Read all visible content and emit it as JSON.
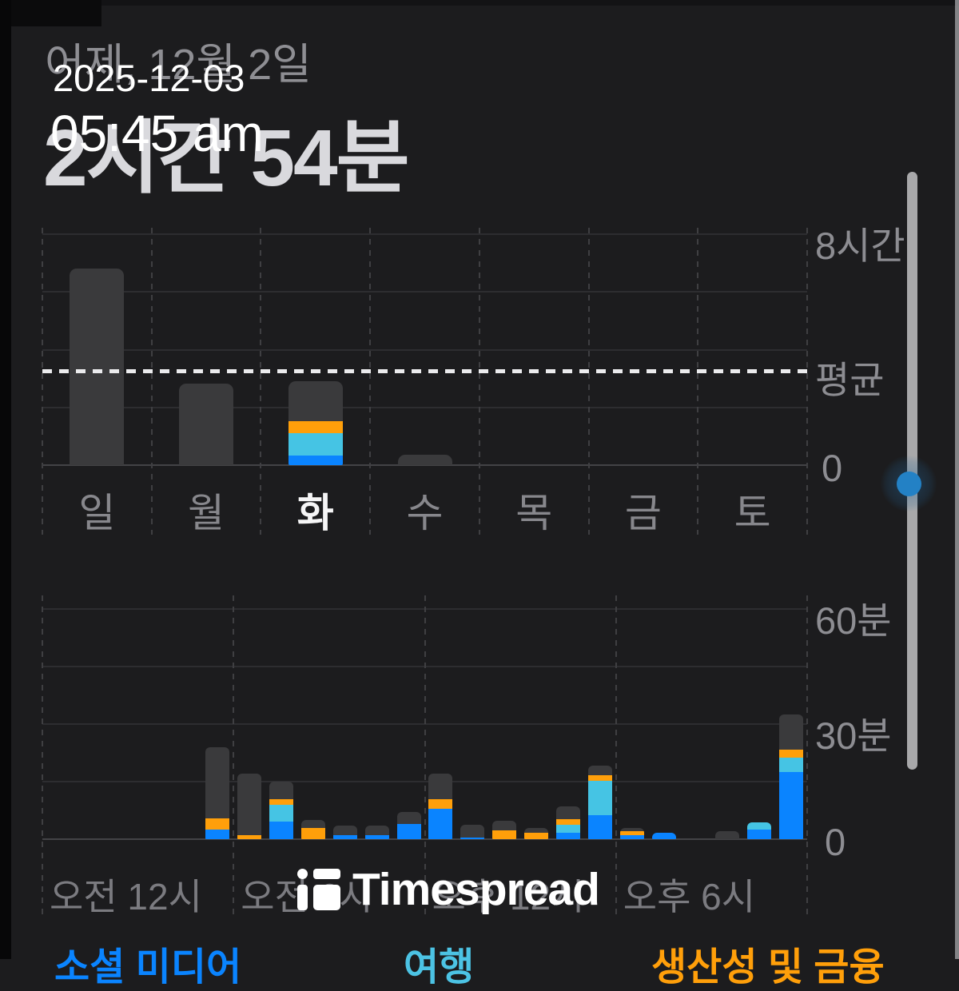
{
  "overlay": {
    "date_stamp": "2025-12-03",
    "time_stamp": "05:45 am",
    "watermark_text": "Timespread"
  },
  "header": {
    "date_label": "어제, 12월 2일",
    "total_label": "2시간 54분"
  },
  "legend": [
    {
      "label": "소셜 미디어",
      "color": "#0a84ff"
    },
    {
      "label": "여행",
      "color": "#4cc3e4"
    },
    {
      "label": "생산성 및 금융",
      "color": "#ff9f0a"
    }
  ],
  "colors": {
    "background": "#1c1c1e",
    "bar_other": "#3a3a3c",
    "bar_social": "#0a84ff",
    "bar_travel": "#45c4e4",
    "bar_productivity": "#ff9f0a",
    "average_line": "#ebebed",
    "scroll_dot": "#2381c5"
  },
  "chart_data": [
    {
      "type": "bar",
      "stacked": true,
      "unit": "hours",
      "categories": [
        "일",
        "월",
        "화",
        "수",
        "목",
        "금",
        "토"
      ],
      "selected_index": 2,
      "ylim": [
        0,
        8
      ],
      "grid_step": 2,
      "yticks": [
        {
          "value": 8,
          "label": "8시간"
        },
        {
          "value": 0,
          "label": "0"
        }
      ],
      "average": {
        "value": 3.27,
        "label": "평균"
      },
      "series": [
        {
          "name": "소셜 미디어",
          "color": "#0a84ff",
          "values": [
            0,
            0,
            0.33,
            0,
            0,
            0,
            0
          ]
        },
        {
          "name": "여행",
          "color": "#45c4e4",
          "values": [
            0,
            0,
            0.78,
            0,
            0,
            0,
            0
          ]
        },
        {
          "name": "생산성 및 금융",
          "color": "#ff9f0a",
          "values": [
            0,
            0,
            0.41,
            0,
            0,
            0,
            0
          ]
        },
        {
          "name": "other",
          "color": "#3a3a3c",
          "values": [
            6.8,
            2.82,
            1.38,
            0.37,
            0,
            0,
            0
          ]
        }
      ]
    },
    {
      "type": "bar",
      "stacked": true,
      "unit": "minutes",
      "x": "hour-of-day 0-23",
      "ylim": [
        0,
        60
      ],
      "grid_step": 15,
      "yticks": [
        {
          "value": 60,
          "label": "60분"
        },
        {
          "value": 30,
          "label": "30분"
        },
        {
          "value": 0,
          "label": "0"
        }
      ],
      "xticks": [
        {
          "hour": 0,
          "label": "오전 12시"
        },
        {
          "hour": 6,
          "label": "오전 6시"
        },
        {
          "hour": 12,
          "label": "오후 12시"
        },
        {
          "hour": 18,
          "label": "오후 6시"
        }
      ],
      "series": [
        {
          "name": "소셜 미디어",
          "color": "#0a84ff",
          "values": [
            0,
            0,
            0,
            0,
            0,
            2.5,
            0,
            4.5,
            0,
            1,
            1,
            4,
            8,
            0.5,
            0,
            0,
            1.7,
            6.3,
            1,
            1.7,
            0,
            0,
            2.4,
            17.4
          ]
        },
        {
          "name": "여행",
          "color": "#45c4e4",
          "values": [
            0,
            0,
            0,
            0,
            0,
            0,
            0,
            4.5,
            0,
            0,
            0,
            0,
            0,
            0,
            0,
            0,
            2.1,
            9,
            0,
            0,
            0,
            0,
            2,
            3.8
          ]
        },
        {
          "name": "생산성 및 금융",
          "color": "#ff9f0a",
          "values": [
            0,
            0,
            0,
            0,
            0,
            3,
            1,
            1.5,
            3,
            0,
            0,
            0,
            2.5,
            0,
            2.3,
            1.7,
            1.4,
            1.4,
            1,
            0,
            0,
            0,
            0,
            2.1
          ]
        },
        {
          "name": "other",
          "color": "#3a3a3c",
          "values": [
            0,
            0,
            0,
            0,
            0,
            18.5,
            16,
            4.5,
            2,
            2.5,
            2.5,
            3,
            6.5,
            3.3,
            2.5,
            1.3,
            3.3,
            2.4,
            1,
            0,
            0,
            2,
            0,
            9.2
          ]
        }
      ]
    }
  ]
}
